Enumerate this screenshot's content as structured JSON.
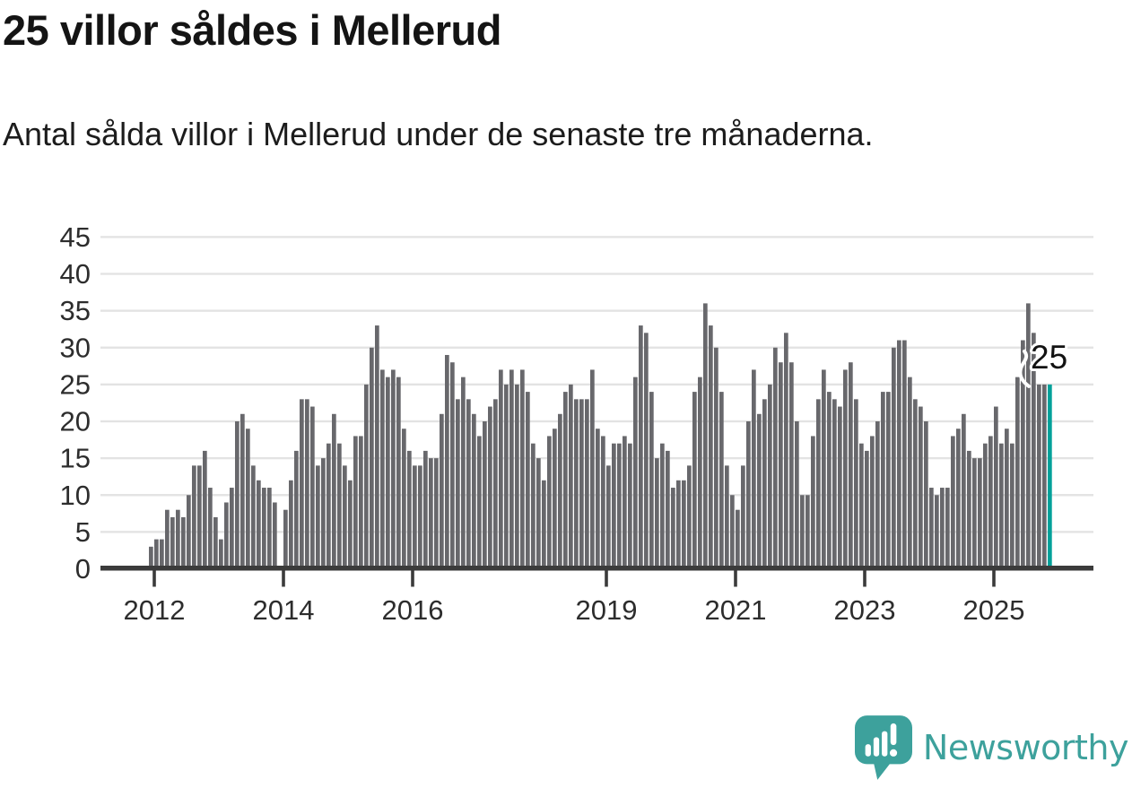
{
  "header": {
    "title": "25 villor såldes i Mellerud",
    "subtitle": "Antal sålda villor i Mellerud under de senaste tre månaderna."
  },
  "brand": {
    "name": "Newsworthy",
    "color": "#3da19c",
    "icon": "newsworthy-speech-bubble-chart-icon"
  },
  "chart_data": {
    "type": "bar",
    "title": "25 villor såldes i Mellerud",
    "subtitle": "Antal sålda villor i Mellerud under de senaste tre månaderna.",
    "unit": "villor",
    "grid": true,
    "ylim": [
      0,
      45
    ],
    "y_ticks": [
      0,
      5,
      10,
      15,
      20,
      25,
      30,
      35,
      40,
      45
    ],
    "x_ticks": [
      {
        "label": "2012",
        "month_index": 1
      },
      {
        "label": "2014",
        "month_index": 25
      },
      {
        "label": "2016",
        "month_index": 49
      },
      {
        "label": "2019",
        "month_index": 85
      },
      {
        "label": "2021",
        "month_index": 109
      },
      {
        "label": "2023",
        "month_index": 133
      },
      {
        "label": "2025",
        "month_index": 157
      }
    ],
    "bar_color": "#68686c",
    "highlight_color": "#00a19a",
    "axis_color": "#3b3b3b",
    "grid_color": "#e3e3e3",
    "label_color": "#2d2d2d",
    "annotation": {
      "text": "25",
      "value": 25
    },
    "highlight_index": 167,
    "values": [
      3,
      4,
      4,
      8,
      7,
      8,
      7,
      10,
      14,
      14,
      16,
      11,
      7,
      4,
      9,
      11,
      20,
      21,
      19,
      14,
      12,
      11,
      11,
      9,
      0,
      8,
      12,
      16,
      23,
      23,
      22,
      14,
      15,
      17,
      21,
      17,
      14,
      12,
      18,
      18,
      25,
      30,
      33,
      27,
      26,
      27,
      26,
      19,
      16,
      14,
      14,
      16,
      15,
      15,
      21,
      29,
      28,
      23,
      26,
      23,
      21,
      18,
      20,
      22,
      23,
      27,
      25,
      27,
      25,
      27,
      24,
      17,
      15,
      12,
      18,
      19,
      21,
      24,
      25,
      23,
      23,
      23,
      27,
      19,
      18,
      14,
      17,
      17,
      18,
      17,
      26,
      33,
      32,
      24,
      15,
      17,
      16,
      11,
      12,
      12,
      14,
      24,
      26,
      36,
      33,
      30,
      24,
      14,
      10,
      8,
      14,
      20,
      27,
      21,
      23,
      25,
      30,
      28,
      32,
      28,
      20,
      10,
      10,
      18,
      23,
      27,
      24,
      23,
      22,
      27,
      28,
      23,
      17,
      16,
      18,
      20,
      24,
      24,
      30,
      31,
      31,
      26,
      23,
      22,
      20,
      11,
      10,
      11,
      11,
      18,
      19,
      21,
      16,
      15,
      15,
      17,
      18,
      22,
      17,
      19,
      17,
      26,
      31,
      36,
      32,
      25,
      25,
      25
    ]
  }
}
